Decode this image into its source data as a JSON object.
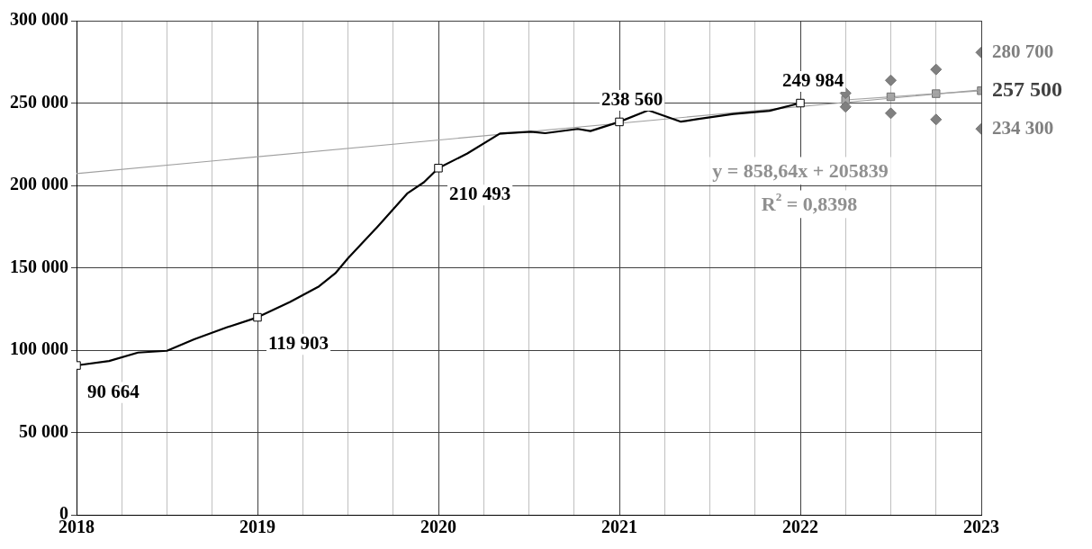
{
  "chart_data": {
    "type": "line",
    "xlim": [
      2018,
      2023
    ],
    "xticks": [
      2018,
      {
        "value": 2018.25,
        "label": null
      },
      {
        "value": 2018.5,
        "label": null
      },
      {
        "value": 2018.75,
        "label": null
      },
      2019,
      {
        "value": 2019.25,
        "label": null
      },
      {
        "value": 2019.5,
        "label": null
      },
      {
        "value": 2019.75,
        "label": null
      },
      2020,
      {
        "value": 2020.25,
        "label": null
      },
      {
        "value": 2020.5,
        "label": null
      },
      {
        "value": 2020.75,
        "label": null
      },
      2021,
      {
        "value": 2021.25,
        "label": null
      },
      {
        "value": 2021.5,
        "label": null
      },
      {
        "value": 2021.75,
        "label": null
      },
      2022,
      {
        "value": 2022.25,
        "label": null
      },
      {
        "value": 2022.5,
        "label": null
      },
      {
        "value": 2022.75,
        "label": null
      },
      2023
    ],
    "ylim": [
      0,
      300000
    ],
    "yticks": [
      0,
      {
        "value": 50000,
        "label": "50 000"
      },
      {
        "value": 100000,
        "label": "100 000"
      },
      {
        "value": 150000,
        "label": "150 000"
      },
      {
        "value": 200000,
        "label": "200 000"
      },
      {
        "value": 250000,
        "label": "250 000"
      },
      {
        "value": 300000,
        "label": "300 000"
      }
    ],
    "grid": true,
    "legend": false,
    "annotations": [
      "y = 858,64x + 205839",
      "R$^{2}$ = 0,8398"
    ],
    "series": [
      {
        "type": "line",
        "color": "#000000",
        "marker": "none",
        "x": [
          2018,
          2018.18,
          2018.34,
          2018.5,
          2018.65,
          2018.83,
          2019,
          2019.18,
          2019.34,
          2019.43,
          2019.5,
          2019.66,
          2019.83,
          2019.92,
          2020,
          2020.16,
          2020.34,
          2020.51,
          2020.59,
          2020.77,
          2020.84,
          2021,
          2021.16,
          2021.34,
          2021.43,
          2021.63,
          2021.83,
          2022
        ],
        "values": [
          90700,
          93400,
          98500,
          99600,
          106600,
          113800,
          119900,
          129200,
          138700,
          146600,
          155700,
          174500,
          195300,
          201900,
          210500,
          219400,
          231500,
          232600,
          231700,
          234300,
          233000,
          238600,
          245600,
          238700,
          240200,
          243400,
          245300,
          250000
        ]
      },
      {
        "type": "line",
        "color": "#a0a0a0",
        "marker": "none",
        "x": [
          2018,
          2023
        ],
        "values": [
          207200,
          258000
        ]
      },
      {
        "type": "scatter",
        "color": "#000000",
        "marker": "square",
        "x": [
          2018,
          2019,
          2020,
          2021,
          2022
        ],
        "values": [
          90664,
          119903,
          210493,
          238560,
          249984
        ],
        "value_labels": [
          "90 664",
          "119 903",
          "210 493",
          "238 560",
          "249 984"
        ]
      },
      {
        "type": "scatter",
        "color": "#808080",
        "marker": "diamond",
        "x": [
          2022.25,
          2022.5,
          2022.75,
          2023
        ],
        "values": [
          256000,
          263800,
          270400,
          280700
        ],
        "value_labels": [
          null,
          null,
          null,
          "280 700"
        ]
      },
      {
        "type": "line",
        "color": "#a6a6a6",
        "marker": "square",
        "x": [
          2022.25,
          2022.5,
          2022.75,
          2023
        ],
        "values": [
          251900,
          253800,
          255700,
          257500
        ],
        "value_labels": [
          null,
          null,
          null,
          "257 500"
        ]
      },
      {
        "type": "scatter",
        "color": "#808080",
        "marker": "diamond",
        "x": [
          2022.25,
          2022.5,
          2022.75,
          2023
        ],
        "values": [
          247700,
          243800,
          240000,
          234300
        ],
        "value_labels": [
          null,
          null,
          null,
          "234 300"
        ]
      }
    ]
  }
}
